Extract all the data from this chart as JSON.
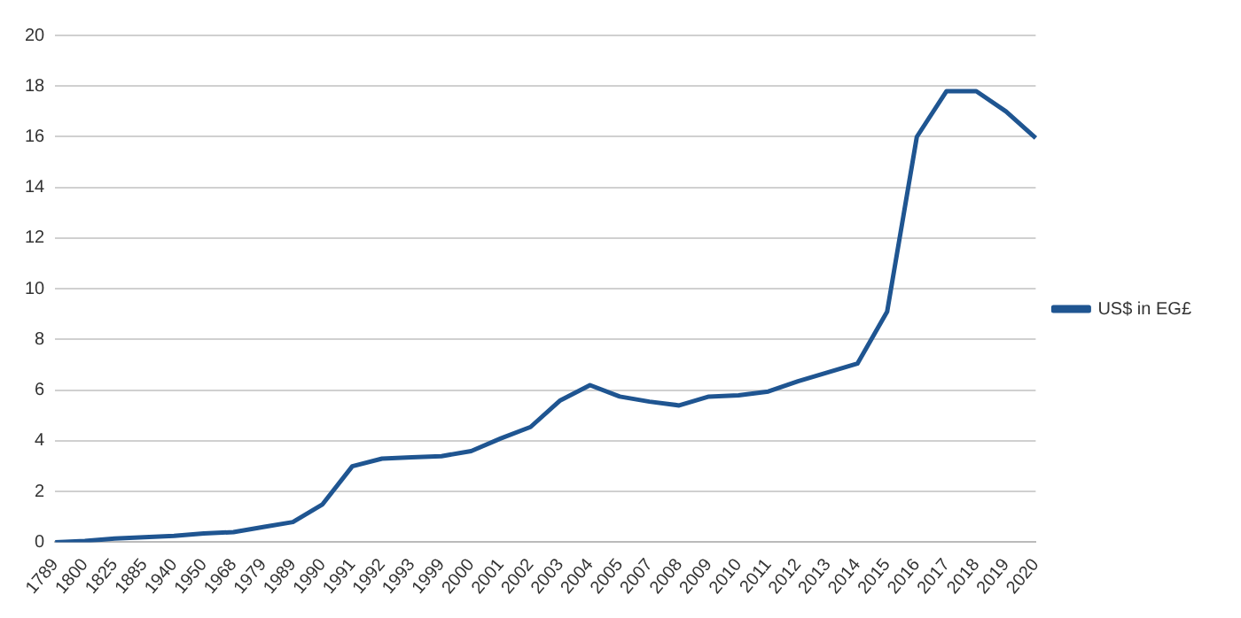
{
  "chart_data": {
    "type": "line",
    "categories": [
      "1789",
      "1800",
      "1825",
      "1885",
      "1940",
      "1950",
      "1968",
      "1979",
      "1989",
      "1990",
      "1991",
      "1992",
      "1993",
      "1999",
      "2000",
      "2001",
      "2002",
      "2003",
      "2004",
      "2005",
      "2007",
      "2008",
      "2009",
      "2010",
      "2011",
      "2012",
      "2013",
      "2014",
      "2015",
      "2016",
      "2017",
      "2018",
      "2019",
      "2020"
    ],
    "series": [
      {
        "name": "US$ in EG£",
        "color": "#1f5591",
        "values": [
          0,
          0.05,
          0.15,
          0.2,
          0.25,
          0.35,
          0.4,
          0.6,
          0.8,
          1.5,
          3.0,
          3.3,
          3.35,
          3.4,
          3.6,
          4.1,
          4.55,
          5.6,
          6.2,
          5.75,
          5.55,
          5.4,
          5.75,
          5.8,
          5.95,
          6.35,
          6.7,
          7.05,
          9.1,
          16.0,
          17.8,
          17.8,
          17.0,
          15.95
        ]
      }
    ],
    "ylim": [
      0,
      20
    ],
    "yticks": [
      0,
      2,
      4,
      6,
      8,
      10,
      12,
      14,
      16,
      18,
      20
    ],
    "grid": "y",
    "legend": "right",
    "marker": "none",
    "line_style": "solid"
  }
}
